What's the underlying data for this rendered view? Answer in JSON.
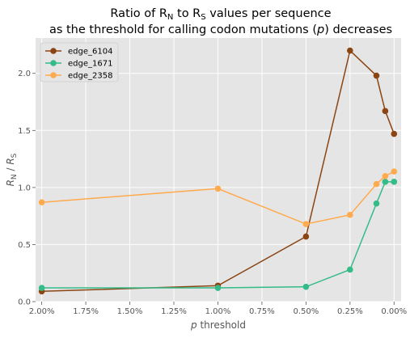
{
  "chart_data": {
    "type": "line",
    "title_line1": "Ratio of R",
    "title_sub_n": "N",
    "title_mid": " to R",
    "title_sub_s": "S",
    "title_end": " values per sequence",
    "title_line2_pre": "as the threshold for calling codon mutations (",
    "title_line2_p": "p",
    "title_line2_post": ") decreases",
    "xlabel_italic": "p",
    "xlabel_rest": " threshold",
    "ylabel_r1": "R",
    "ylabel_sub1": "N",
    "ylabel_mid": " / ",
    "ylabel_r2": "R",
    "ylabel_sub2": "S",
    "xlim": [
      2.035,
      -0.04
    ],
    "ylim": [
      0.0,
      2.31
    ],
    "xticks": [
      {
        "value": 2.0,
        "label": "2.00%"
      },
      {
        "value": 1.75,
        "label": "1.75%"
      },
      {
        "value": 1.5,
        "label": "1.50%"
      },
      {
        "value": 1.25,
        "label": "1.25%"
      },
      {
        "value": 1.0,
        "label": "1.00%"
      },
      {
        "value": 0.75,
        "label": "0.75%"
      },
      {
        "value": 0.5,
        "label": "0.50%"
      },
      {
        "value": 0.25,
        "label": "0.25%"
      },
      {
        "value": 0.0,
        "label": "0.00%"
      }
    ],
    "yticks": [
      {
        "value": 0.0,
        "label": "0.0"
      },
      {
        "value": 0.5,
        "label": "0.5"
      },
      {
        "value": 1.0,
        "label": "1.0"
      },
      {
        "value": 1.5,
        "label": "1.5"
      },
      {
        "value": 2.0,
        "label": "2.0"
      }
    ],
    "grid": true,
    "legend_position": "upper-left",
    "series": [
      {
        "name": "edge_6104",
        "color": "#8B4513",
        "points": [
          {
            "x": 2.0,
            "y": 0.09
          },
          {
            "x": 1.0,
            "y": 0.14
          },
          {
            "x": 0.5,
            "y": 0.57
          },
          {
            "x": 0.25,
            "y": 2.2
          },
          {
            "x": 0.1,
            "y": 1.98
          },
          {
            "x": 0.05,
            "y": 1.67
          },
          {
            "x": 0.0,
            "y": 1.47
          }
        ]
      },
      {
        "name": "edge_1671",
        "color": "#33BB88",
        "points": [
          {
            "x": 2.0,
            "y": 0.12
          },
          {
            "x": 1.0,
            "y": 0.12
          },
          {
            "x": 0.5,
            "y": 0.13
          },
          {
            "x": 0.25,
            "y": 0.28
          },
          {
            "x": 0.1,
            "y": 0.86
          },
          {
            "x": 0.05,
            "y": 1.05
          },
          {
            "x": 0.0,
            "y": 1.05
          }
        ]
      },
      {
        "name": "edge_2358",
        "color": "#FFAA4C",
        "points": [
          {
            "x": 2.0,
            "y": 0.87
          },
          {
            "x": 1.0,
            "y": 0.99
          },
          {
            "x": 0.5,
            "y": 0.68
          },
          {
            "x": 0.25,
            "y": 0.76
          },
          {
            "x": 0.1,
            "y": 1.03
          },
          {
            "x": 0.05,
            "y": 1.1
          },
          {
            "x": 0.0,
            "y": 1.14
          }
        ]
      }
    ]
  }
}
